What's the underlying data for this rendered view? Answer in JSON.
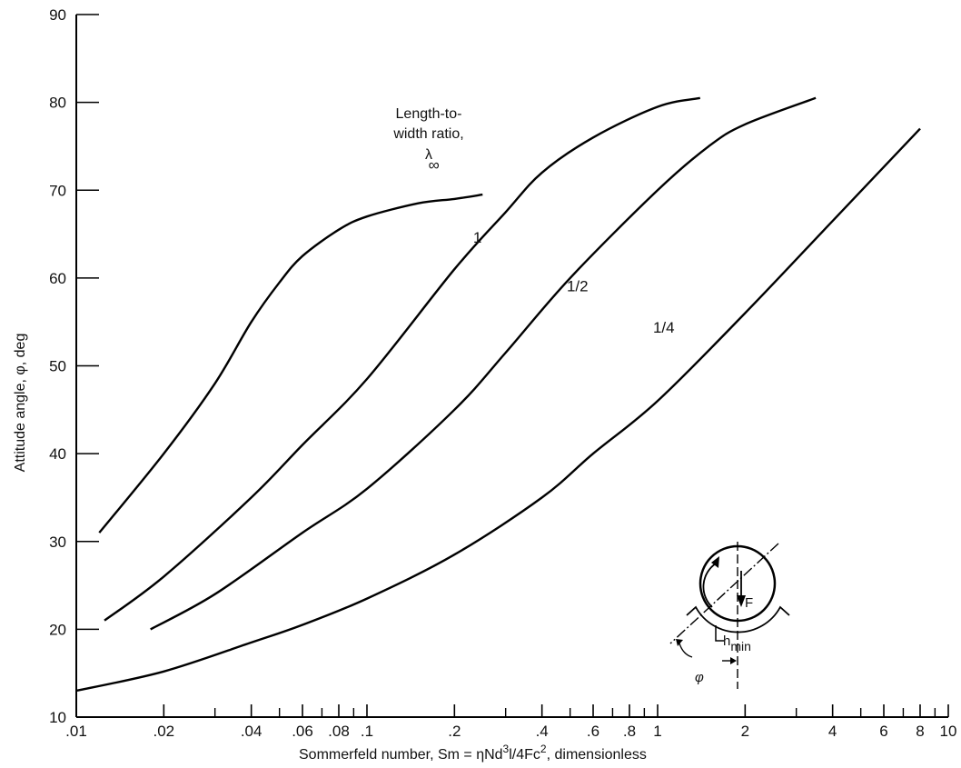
{
  "chart_data": {
    "type": "line",
    "xlabel": "Sommerfeld number,  Sm = ηNd³l/4Fc², dimensionless",
    "xlabel_parts": {
      "prefix": "Sommerfeld number,  Sm = ηNd",
      "sup1": "3",
      "mid": "l/4Fc",
      "sup2": "2",
      "suffix": ", dimensionless"
    },
    "ylabel": "Attitude angle, φ, deg",
    "xscale": "log",
    "xlim": [
      0.01,
      10
    ],
    "ylim": [
      10,
      90
    ],
    "x_ticks": [
      {
        "value": 0.01,
        "label": ".01"
      },
      {
        "value": 0.02,
        "label": ".02"
      },
      {
        "value": 0.04,
        "label": ".04"
      },
      {
        "value": 0.06,
        "label": ".06"
      },
      {
        "value": 0.08,
        "label": ".08"
      },
      {
        "value": 0.1,
        "label": ".1"
      },
      {
        "value": 0.2,
        "label": ".2"
      },
      {
        "value": 0.4,
        "label": ".4"
      },
      {
        "value": 0.6,
        "label": ".6"
      },
      {
        "value": 0.8,
        "label": ".8"
      },
      {
        "value": 1,
        "label": "1"
      },
      {
        "value": 2,
        "label": "2"
      },
      {
        "value": 4,
        "label": "4"
      },
      {
        "value": 6,
        "label": "6"
      },
      {
        "value": 8,
        "label": "8"
      },
      {
        "value": 10,
        "label": "10"
      }
    ],
    "x_minor_ticks": [
      0.03,
      0.05,
      0.07,
      0.09,
      0.3,
      0.5,
      0.7,
      0.9,
      3,
      5,
      7,
      9
    ],
    "y_ticks": [
      10,
      20,
      30,
      40,
      50,
      60,
      70,
      80,
      90
    ],
    "grid": false,
    "legend_title": [
      "Length-to-",
      "width ratio,",
      "λ"
    ],
    "series": [
      {
        "name": "∞",
        "x": [
          0.012,
          0.02,
          0.03,
          0.04,
          0.05,
          0.06,
          0.08,
          0.1,
          0.15,
          0.2,
          0.25
        ],
        "y": [
          31,
          40,
          48,
          55,
          59.5,
          62.5,
          65.5,
          67,
          68.5,
          69,
          69.5
        ]
      },
      {
        "name": "1",
        "x": [
          0.0125,
          0.02,
          0.04,
          0.06,
          0.1,
          0.2,
          0.3,
          0.4,
          0.6,
          1.0,
          1.4
        ],
        "y": [
          21,
          26,
          35,
          41,
          48.5,
          61,
          67.5,
          72,
          76,
          79.5,
          80.5
        ]
      },
      {
        "name": "1/2",
        "x": [
          0.018,
          0.03,
          0.06,
          0.1,
          0.2,
          0.3,
          0.5,
          1.0,
          1.5,
          2.0,
          3.5
        ],
        "y": [
          20,
          24,
          31,
          36,
          45,
          51.5,
          60,
          70,
          75,
          77.5,
          80.5
        ]
      },
      {
        "name": "1/4",
        "x": [
          0.01,
          0.02,
          0.04,
          0.06,
          0.1,
          0.2,
          0.4,
          0.6,
          1.0,
          2.0,
          4.0,
          8.0
        ],
        "y": [
          13,
          15.2,
          18.5,
          20.5,
          23.5,
          28.5,
          35,
          40,
          46,
          56,
          66.5,
          77
        ]
      }
    ]
  },
  "diagram": {
    "force_label": "F",
    "gap_label": "h",
    "gap_subscript": "min",
    "angle_label": "φ"
  }
}
